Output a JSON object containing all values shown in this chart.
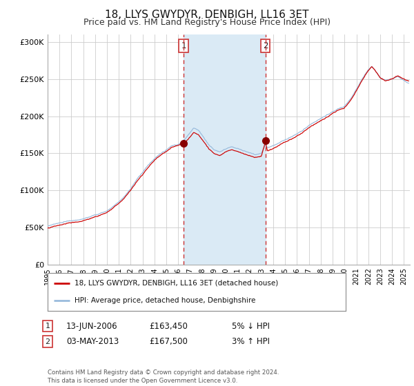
{
  "title": "18, LLYS GWYDYR, DENBIGH, LL16 3ET",
  "subtitle": "Price paid vs. HM Land Registry's House Price Index (HPI)",
  "title_fontsize": 11,
  "subtitle_fontsize": 9,
  "xlim_start": 1995.0,
  "xlim_end": 2025.5,
  "ylim_min": 0,
  "ylim_max": 310000,
  "yticks": [
    0,
    50000,
    100000,
    150000,
    200000,
    250000,
    300000
  ],
  "ytick_labels": [
    "£0",
    "£50K",
    "£100K",
    "£150K",
    "£200K",
    "£250K",
    "£300K"
  ],
  "xtick_years": [
    1995,
    1996,
    1997,
    1998,
    1999,
    2000,
    2001,
    2002,
    2003,
    2004,
    2005,
    2006,
    2007,
    2008,
    2009,
    2010,
    2011,
    2012,
    2013,
    2014,
    2015,
    2016,
    2017,
    2018,
    2019,
    2020,
    2021,
    2022,
    2023,
    2024,
    2025
  ],
  "line_red_color": "#cc0000",
  "line_blue_color": "#99bbdd",
  "marker_color": "#880000",
  "vline1_x": 2006.45,
  "vline2_x": 2013.34,
  "shade_start": 2006.45,
  "shade_end": 2013.34,
  "shade_color": "#daeaf5",
  "vline1_color": "#cc3333",
  "vline2_color": "#cc3333",
  "marker1_x": 2006.45,
  "marker1_y": 163450,
  "marker2_x": 2013.34,
  "marker2_y": 167500,
  "legend_label_red": "18, LLYS GWYDYR, DENBIGH, LL16 3ET (detached house)",
  "legend_label_blue": "HPI: Average price, detached house, Denbighshire",
  "annotation1_date": "13-JUN-2006",
  "annotation1_price": "£163,450",
  "annotation1_hpi": "5% ↓ HPI",
  "annotation2_date": "03-MAY-2013",
  "annotation2_price": "£167,500",
  "annotation2_hpi": "3% ↑ HPI",
  "footer": "Contains HM Land Registry data © Crown copyright and database right 2024.\nThis data is licensed under the Open Government Licence v3.0.",
  "bg_color": "#ffffff",
  "plot_bg_color": "#ffffff",
  "grid_color": "#cccccc"
}
